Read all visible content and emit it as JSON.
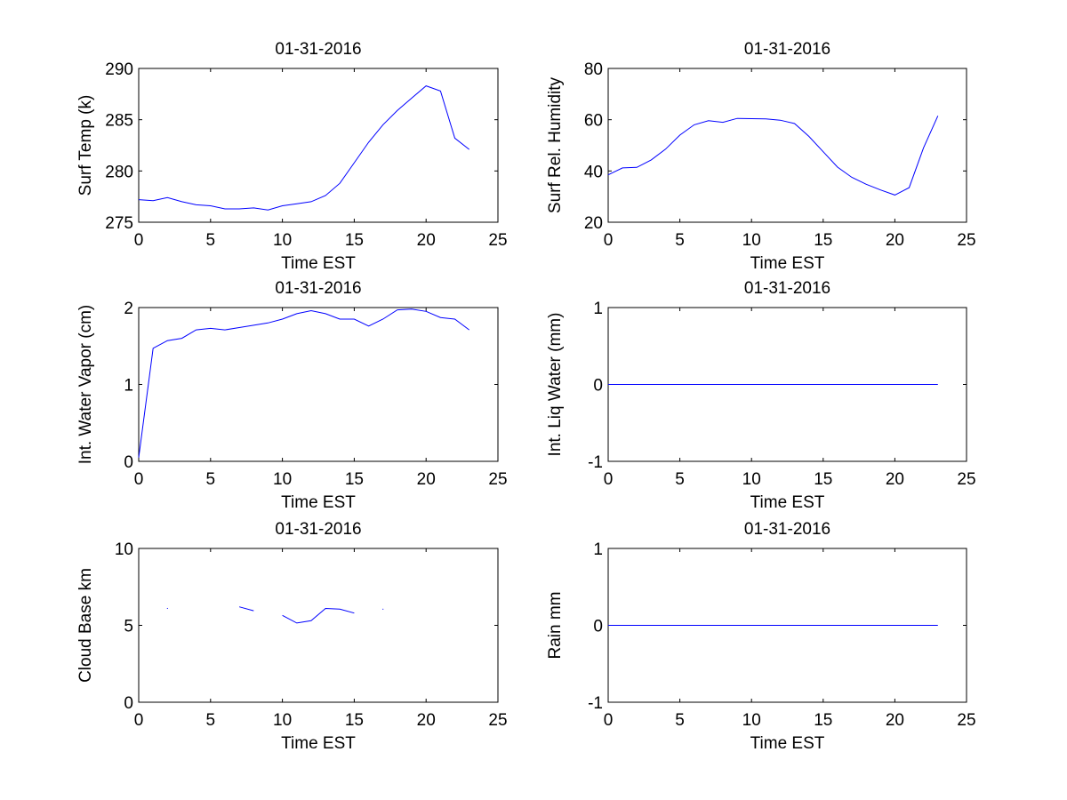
{
  "figure": {
    "background": "#ffffff",
    "line_color": "#0000ff",
    "axis_color": "#000000"
  },
  "chart_data": [
    {
      "type": "line",
      "title": "01-31-2016",
      "xlabel": "Time EST",
      "ylabel": "Surf Temp (k)",
      "xlim": [
        0,
        25
      ],
      "ylim": [
        275,
        290
      ],
      "xticks": [
        0,
        5,
        10,
        15,
        20,
        25
      ],
      "yticks": [
        275,
        280,
        285,
        290
      ],
      "grid": false,
      "series": [
        {
          "x": [
            0,
            1,
            2,
            3,
            4,
            5,
            6,
            7,
            8,
            9,
            10,
            11,
            12,
            13,
            14,
            15,
            16,
            17,
            18,
            19,
            20,
            21,
            22,
            23
          ],
          "y": [
            277.2,
            277.1,
            277.4,
            277.0,
            276.7,
            276.6,
            276.3,
            276.3,
            276.4,
            276.2,
            276.6,
            276.8,
            277.0,
            277.6,
            278.8,
            280.8,
            282.8,
            284.5,
            285.9,
            287.1,
            288.3,
            287.8,
            283.2,
            282.1
          ]
        }
      ]
    },
    {
      "type": "line",
      "title": "01-31-2016",
      "xlabel": "Time EST",
      "ylabel": "Surf Rel. Humidity",
      "xlim": [
        0,
        25
      ],
      "ylim": [
        20,
        80
      ],
      "xticks": [
        0,
        5,
        10,
        15,
        20,
        25
      ],
      "yticks": [
        20,
        40,
        60,
        80
      ],
      "grid": false,
      "series": [
        {
          "x": [
            0,
            1,
            2,
            3,
            4,
            5,
            6,
            7,
            8,
            9,
            10,
            11,
            12,
            13,
            14,
            15,
            16,
            17,
            18,
            19,
            20,
            21,
            22,
            23
          ],
          "y": [
            38.5,
            41.2,
            41.4,
            44.3,
            48.5,
            54.0,
            58.0,
            59.6,
            59.0,
            60.5,
            60.4,
            60.3,
            59.8,
            58.5,
            53.5,
            47.5,
            41.5,
            37.5,
            34.8,
            32.6,
            30.6,
            33.5,
            49.0,
            61.5
          ]
        }
      ]
    },
    {
      "type": "line",
      "title": "01-31-2016",
      "xlabel": "Time EST",
      "ylabel": "Int. Water Vapor (cm)",
      "xlim": [
        0,
        25
      ],
      "ylim": [
        0,
        2
      ],
      "xticks": [
        0,
        5,
        10,
        15,
        20,
        25
      ],
      "yticks": [
        0,
        1,
        2
      ],
      "grid": false,
      "series": [
        {
          "x": [
            0,
            1,
            2,
            3,
            4,
            5,
            6,
            7,
            8,
            9,
            10,
            11,
            12,
            13,
            14,
            15,
            16,
            17,
            18,
            19,
            20,
            21,
            22,
            23
          ],
          "y": [
            0.05,
            1.47,
            1.57,
            1.6,
            1.71,
            1.73,
            1.71,
            1.74,
            1.77,
            1.8,
            1.85,
            1.92,
            1.96,
            1.92,
            1.85,
            1.85,
            1.76,
            1.85,
            1.97,
            1.98,
            1.95,
            1.87,
            1.85,
            1.71
          ]
        }
      ]
    },
    {
      "type": "line",
      "title": "01-31-2016",
      "xlabel": "Time EST",
      "ylabel": "Int. Liq Water (mm)",
      "xlim": [
        0,
        25
      ],
      "ylim": [
        -1,
        1
      ],
      "xticks": [
        0,
        5,
        10,
        15,
        20,
        25
      ],
      "yticks": [
        -1,
        0,
        1
      ],
      "grid": false,
      "series": [
        {
          "x": [
            0,
            1,
            2,
            3,
            4,
            5,
            6,
            7,
            8,
            9,
            10,
            11,
            12,
            13,
            14,
            15,
            16,
            17,
            18,
            19,
            20,
            21,
            22,
            23
          ],
          "y": [
            0,
            0,
            0,
            0,
            0,
            0,
            0,
            0,
            0,
            0,
            0,
            0,
            0,
            0,
            0,
            0,
            0,
            0,
            0,
            0,
            0,
            0,
            0,
            0
          ]
        }
      ]
    },
    {
      "type": "line",
      "title": "01-31-2016",
      "xlabel": "Time EST",
      "ylabel": "Cloud Base km",
      "xlim": [
        0,
        25
      ],
      "ylim": [
        0,
        10
      ],
      "xticks": [
        0,
        5,
        10,
        15,
        20,
        25
      ],
      "yticks": [
        0,
        5,
        10
      ],
      "grid": false,
      "series": [
        {
          "x": [
            0,
            1,
            2,
            3,
            4,
            5,
            6,
            7,
            8,
            9,
            10,
            11,
            12,
            13,
            14,
            15,
            16,
            17,
            18,
            19,
            20,
            21,
            22,
            23
          ],
          "y": [
            null,
            null,
            6.1,
            null,
            null,
            null,
            null,
            6.2,
            5.95,
            null,
            5.65,
            5.15,
            5.3,
            6.1,
            6.05,
            5.8,
            null,
            6.05,
            null,
            null,
            null,
            null,
            null,
            null
          ]
        }
      ]
    },
    {
      "type": "line",
      "title": "01-31-2016",
      "xlabel": "Time EST",
      "ylabel": "Rain mm",
      "xlim": [
        0,
        25
      ],
      "ylim": [
        -1,
        1
      ],
      "xticks": [
        0,
        5,
        10,
        15,
        20,
        25
      ],
      "yticks": [
        -1,
        0,
        1
      ],
      "grid": false,
      "series": [
        {
          "x": [
            0,
            1,
            2,
            3,
            4,
            5,
            6,
            7,
            8,
            9,
            10,
            11,
            12,
            13,
            14,
            15,
            16,
            17,
            18,
            19,
            20,
            21,
            22,
            23
          ],
          "y": [
            0,
            0,
            0,
            0,
            0,
            0,
            0,
            0,
            0,
            0,
            0,
            0,
            0,
            0,
            0,
            0,
            0,
            0,
            0,
            0,
            0,
            0,
            0,
            0
          ]
        }
      ]
    }
  ]
}
